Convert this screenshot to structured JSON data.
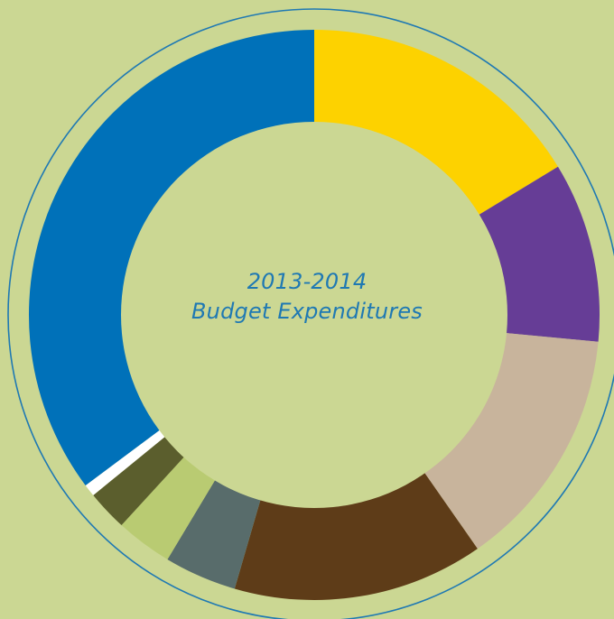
{
  "chart_data": {
    "type": "pie",
    "title_lines": [
      "2013-2014",
      "Budget Expenditures"
    ],
    "slices": [
      {
        "value": 16.3,
        "color": "#fdd200"
      },
      {
        "value": 10.2,
        "color": "#663d96"
      },
      {
        "value": 13.8,
        "color": "#c8b49c"
      },
      {
        "value": 14.2,
        "color": "#5e3c18"
      },
      {
        "value": 4.1,
        "color": "#586c6b"
      },
      {
        "value": 3.2,
        "color": "#b9cb72"
      },
      {
        "value": 2.3,
        "color": "#5b5e2d"
      },
      {
        "value": 0.7,
        "color": "#ffffff"
      },
      {
        "value": 35.2,
        "color": "#0071b9"
      }
    ],
    "ring_outline_color": "#1f79b3",
    "background_color": "#cbd793"
  }
}
